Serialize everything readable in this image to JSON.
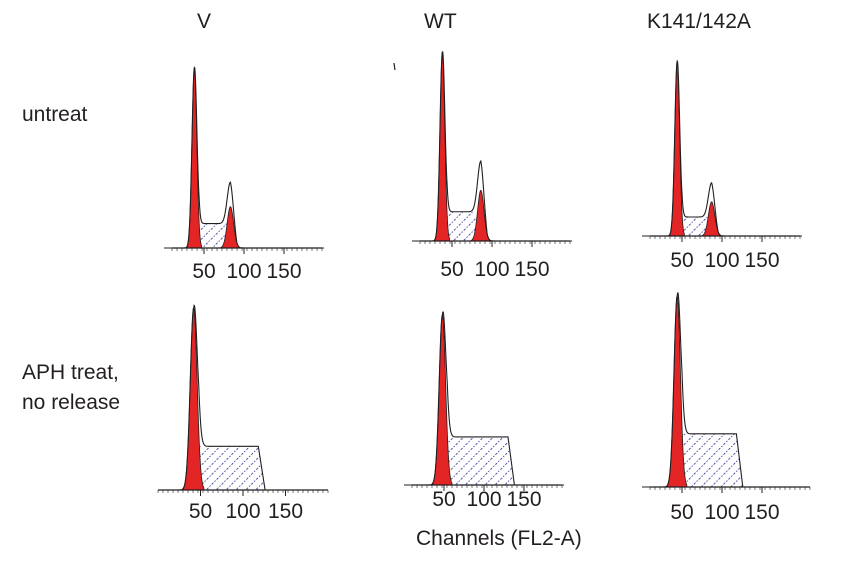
{
  "column_labels": [
    "V",
    "WT",
    "K141/142A"
  ],
  "row_labels": [
    "untreat",
    "APH treat,\nno release"
  ],
  "x_axis_title": "Channels (FL2-A)",
  "colors": {
    "g1_fill": "#e32526",
    "s_phase_hatch": "#2e3192",
    "trace": "#231f20"
  },
  "chart_data": [
    {
      "type": "area",
      "name": "V untreat",
      "xlim": [
        0,
        200
      ],
      "ylim": [
        0,
        100
      ],
      "x_ticks": [
        50,
        100,
        150
      ],
      "peaks": [
        {
          "center": 38,
          "width": 3,
          "height": 96
        },
        {
          "center": 83,
          "width": 4,
          "height": 22
        }
      ],
      "s_phase": {
        "start": 38,
        "end": 83,
        "height": 13
      }
    },
    {
      "type": "area",
      "name": "WT untreat",
      "xlim": [
        0,
        200
      ],
      "ylim": [
        0,
        100
      ],
      "x_ticks": [
        50,
        100,
        150
      ],
      "peaks": [
        {
          "center": 38,
          "width": 3,
          "height": 97
        },
        {
          "center": 86,
          "width": 4,
          "height": 26
        }
      ],
      "s_phase": {
        "start": 38,
        "end": 86,
        "height": 15
      }
    },
    {
      "type": "area",
      "name": "K141/142A untreat",
      "xlim": [
        0,
        200
      ],
      "ylim": [
        0,
        100
      ],
      "x_ticks": [
        50,
        100,
        150
      ],
      "peaks": [
        {
          "center": 44,
          "width": 3,
          "height": 92
        },
        {
          "center": 87,
          "width": 4,
          "height": 18
        }
      ],
      "s_phase": {
        "start": 44,
        "end": 87,
        "height": 10
      }
    },
    {
      "type": "area",
      "name": "V APH treat, no release",
      "xlim": [
        0,
        200
      ],
      "ylim": [
        0,
        100
      ],
      "x_ticks": [
        50,
        100,
        150
      ],
      "peaks": [
        {
          "center": 42,
          "width": 4,
          "height": 96
        }
      ],
      "s_phase": {
        "start": 42,
        "end": 118,
        "height": 23
      }
    },
    {
      "type": "area",
      "name": "WT APH treat, no release",
      "xlim": [
        0,
        200
      ],
      "ylim": [
        0,
        100
      ],
      "x_ticks": [
        50,
        100,
        150
      ],
      "peaks": [
        {
          "center": 48,
          "width": 4,
          "height": 92
        }
      ],
      "s_phase": {
        "start": 48,
        "end": 130,
        "height": 26
      }
    },
    {
      "type": "area",
      "name": "K141/142A APH treat, no release",
      "xlim": [
        0,
        200
      ],
      "ylim": [
        0,
        100
      ],
      "x_ticks": [
        50,
        100,
        150
      ],
      "peaks": [
        {
          "center": 44,
          "width": 4,
          "height": 97
        }
      ],
      "s_phase": {
        "start": 44,
        "end": 118,
        "height": 27
      }
    }
  ]
}
